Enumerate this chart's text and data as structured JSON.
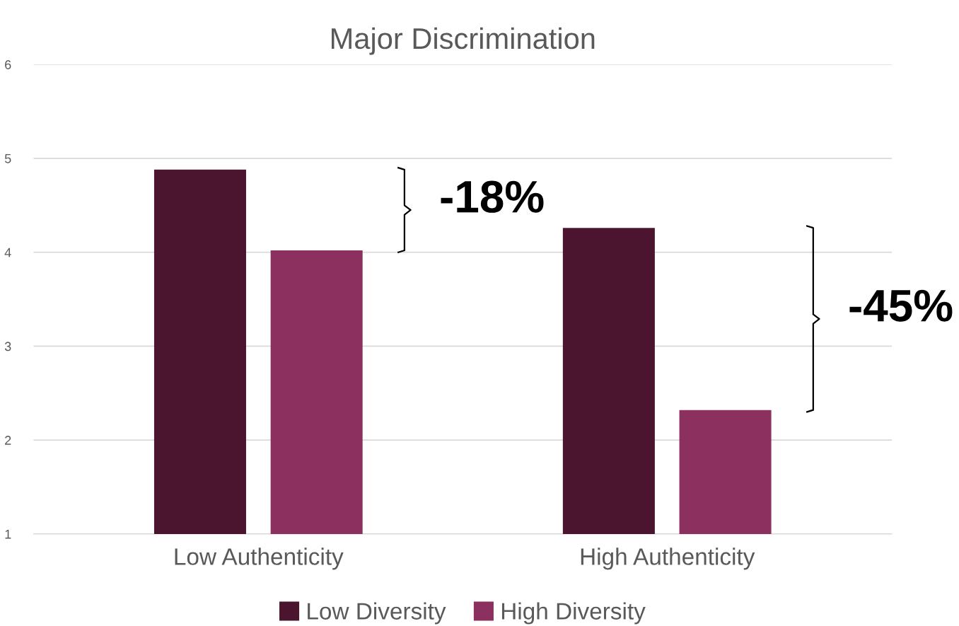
{
  "chart_data": {
    "type": "bar",
    "title": "Major Discrimination",
    "categories": [
      "Low Authenticity",
      "High Authenticity"
    ],
    "series": [
      {
        "name": "Low Diversity",
        "color": "#4b1530",
        "values": [
          4.88,
          4.26
        ]
      },
      {
        "name": "High Diversity",
        "color": "#8c3060",
        "values": [
          4.02,
          2.32
        ]
      }
    ],
    "ylim": [
      1,
      6
    ],
    "yticks": [
      1,
      2,
      3,
      4,
      5,
      6
    ],
    "grid": "y",
    "legend": "bottom",
    "annotations": [
      "-18%",
      "-45%"
    ]
  }
}
